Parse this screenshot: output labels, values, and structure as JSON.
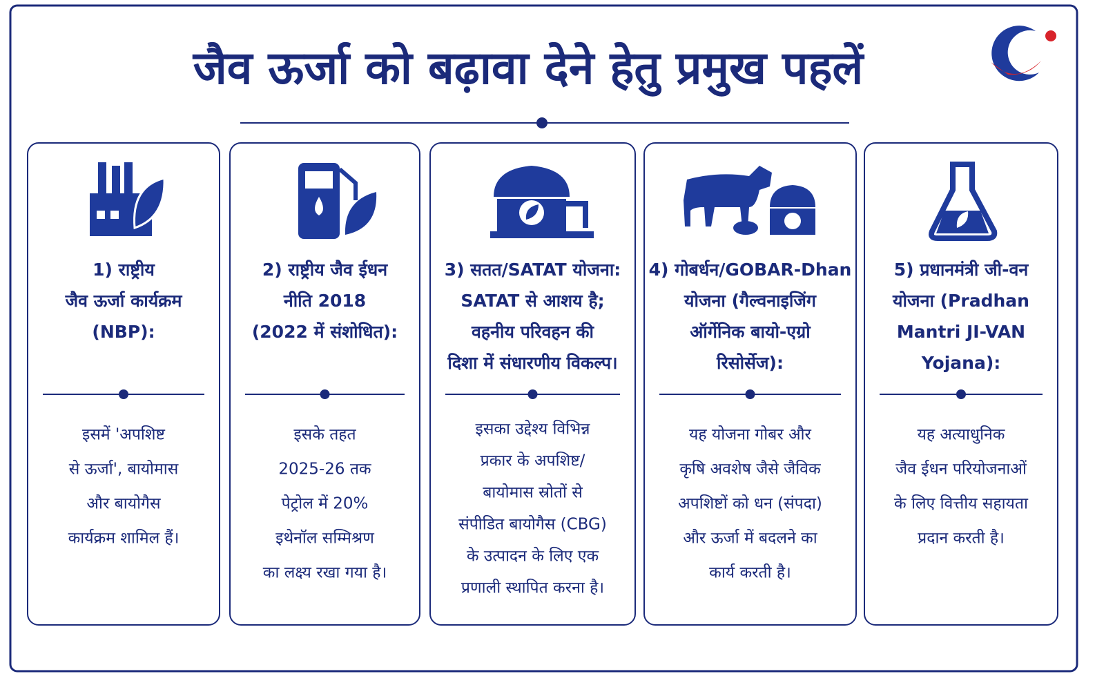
{
  "header": {
    "title": "जैव ऊर्जा को बढ़ावा देने हेतु प्रमुख पहलें"
  },
  "cards": [
    {
      "heading": [
        "1) राष्ट्रीय",
        "जैव ऊर्जा कार्यक्रम",
        "(NBP):"
      ],
      "body": [
        "इसमें 'अपशिष्ट",
        "से ऊर्जा', बायोमास",
        "और बायोगैस",
        "कार्यक्रम शामिल हैं।"
      ]
    },
    {
      "heading": [
        "2) राष्ट्रीय जैव ईधन",
        "नीति 2018",
        "(2022 में संशोधित):"
      ],
      "body": [
        "इसके तहत",
        "2025-26 तक",
        "पेट्रोल में 20%",
        "इथेनॉल सम्मिश्रण",
        "का लक्ष्य रखा गया है।"
      ]
    },
    {
      "heading": [
        "3) सतत/SATAT योजना:",
        "SATAT से आशय है;",
        "वहनीय परिवहन की",
        "दिशा में संधारणीय विकल्प।"
      ],
      "body": [
        "इसका उद्देश्य विभिन्न",
        "प्रकार के अपशिष्ट/",
        "बायोमास स्रोतों से",
        "संपीडित बायोगैस (CBG)",
        "के उत्पादन के लिए एक",
        "प्रणाली स्थापित करना है।"
      ]
    },
    {
      "heading": [
        "4) गोबर्धन/GOBAR-Dhan",
        "योजना (गैल्वनाइजिंग",
        "ऑर्गेनिक बायो-एग्रो",
        "रिसोर्सेज):"
      ],
      "body": [
        "यह योजना गोबर और",
        "कृषि अवशेष जैसे जैविक",
        "अपशिष्टों को धन (संपदा)",
        "और ऊर्जा में बदलने का",
        "कार्य करती है।"
      ]
    },
    {
      "heading": [
        "5) प्रधानमंत्री जी-वन",
        "योजना (Pradhan",
        "Mantri JI-VAN",
        "Yojana):"
      ],
      "body": [
        "यह अत्याधुनिक",
        "जैव ईधन परियोजनाओं",
        "के लिए वित्तीय सहायता",
        "प्रदान करती है।"
      ]
    }
  ]
}
